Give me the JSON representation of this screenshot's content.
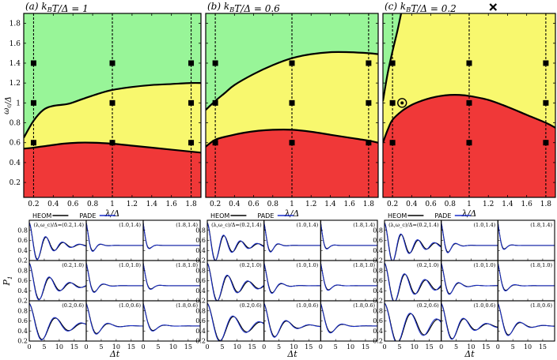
{
  "chart_data": [
    {
      "type": "phase_diagram",
      "panel": "(a)",
      "title": "(a) k_BT/Δ = 1",
      "xlabel": "λ/Δ",
      "ylabel": "ω_c/Δ",
      "xlim": [
        0.1,
        1.9
      ],
      "ylim": [
        0.05,
        1.9
      ],
      "xticks": [
        "0.2",
        "0.4",
        "0.6",
        "0.8",
        "1",
        "1.2",
        "1.4",
        "1.6",
        "1.8"
      ],
      "yticks": [
        "0.2",
        "0.4",
        "0.6",
        "0.8",
        "1",
        "1.2",
        "1.4",
        "1.6",
        "1.8"
      ],
      "region_colors": {
        "top": "#98f598",
        "middle": "#f8f86e",
        "bottom": "#f03838"
      },
      "upper_boundary": {
        "x": [
          0.1,
          0.2,
          0.3,
          0.4,
          0.55,
          0.7,
          0.85,
          1.0,
          1.2,
          1.4,
          1.6,
          1.8,
          1.9
        ],
        "y": [
          0.65,
          0.82,
          0.93,
          0.97,
          0.99,
          1.04,
          1.09,
          1.13,
          1.16,
          1.18,
          1.19,
          1.2,
          1.2
        ]
      },
      "lower_boundary": {
        "x": [
          0.1,
          0.2,
          0.35,
          0.5,
          0.65,
          0.8,
          1.0,
          1.2,
          1.4,
          1.6,
          1.8,
          1.9
        ],
        "y": [
          0.54,
          0.55,
          0.57,
          0.59,
          0.6,
          0.6,
          0.59,
          0.57,
          0.55,
          0.53,
          0.51,
          0.5
        ]
      },
      "top_line": null,
      "dashed_lines_x": [
        0.2,
        1.0,
        1.8
      ],
      "points": {
        "x": [
          0.2,
          1.0,
          1.8
        ],
        "y": [
          0.6,
          1.0,
          1.4
        ]
      },
      "circled_point": null,
      "cross": null
    },
    {
      "type": "phase_diagram",
      "panel": "(b)",
      "title": "(b) k_BT/Δ = 0.6",
      "xlabel": "λ/Δ",
      "ylabel": "",
      "xlim": [
        0.1,
        1.9
      ],
      "ylim": [
        0.05,
        1.9
      ],
      "xticks": [
        "0.2",
        "0.4",
        "0.6",
        "0.8",
        "1",
        "1.2",
        "1.4",
        "1.6",
        "1.8"
      ],
      "yticks": [],
      "region_colors": {
        "top": "#98f598",
        "middle": "#f8f86e",
        "bottom": "#f03838"
      },
      "upper_boundary": {
        "x": [
          0.1,
          0.2,
          0.3,
          0.4,
          0.6,
          0.8,
          1.0,
          1.2,
          1.4,
          1.6,
          1.8,
          1.9
        ],
        "y": [
          0.93,
          1.02,
          1.1,
          1.18,
          1.29,
          1.38,
          1.45,
          1.49,
          1.51,
          1.51,
          1.5,
          1.49
        ]
      },
      "lower_boundary": {
        "x": [
          0.1,
          0.2,
          0.35,
          0.5,
          0.65,
          0.8,
          1.0,
          1.2,
          1.4,
          1.6,
          1.8,
          1.9
        ],
        "y": [
          0.56,
          0.63,
          0.67,
          0.7,
          0.72,
          0.73,
          0.73,
          0.71,
          0.68,
          0.65,
          0.62,
          0.6
        ]
      },
      "top_line": null,
      "dashed_lines_x": [
        0.2,
        1.0,
        1.8
      ],
      "points": {
        "x": [
          0.2,
          1.0,
          1.8
        ],
        "y": [
          0.6,
          1.0,
          1.4
        ]
      },
      "circled_point": null,
      "cross": null
    },
    {
      "type": "phase_diagram",
      "panel": "(c)",
      "title": "(c) k_BT/Δ = 0.2",
      "xlabel": "λ/Δ",
      "ylabel": "",
      "xlim": [
        0.1,
        1.9
      ],
      "ylim": [
        0.05,
        1.9
      ],
      "xticks": [
        "0.2",
        "0.4",
        "0.6",
        "0.8",
        "1",
        "1.2",
        "1.4",
        "1.6",
        "1.8"
      ],
      "yticks": [],
      "region_colors": {
        "top": "#98f598",
        "middle": "#f8f86e",
        "bottom": "#f03838"
      },
      "upper_boundary": {
        "x": [
          0.1,
          0.15,
          0.2,
          0.3,
          0.4,
          0.5,
          0.6,
          0.7,
          0.8,
          0.9,
          1.0,
          1.2,
          1.4,
          1.6,
          1.8,
          1.9
        ],
        "y": [
          0.6,
          0.73,
          0.83,
          0.92,
          0.98,
          1.02,
          1.05,
          1.07,
          1.08,
          1.08,
          1.07,
          1.03,
          0.96,
          0.88,
          0.8,
          0.75
        ]
      },
      "lower_boundary": null,
      "top_line": {
        "x": [
          0.1,
          0.15,
          0.2,
          0.25,
          0.29
        ],
        "y": [
          1.02,
          1.3,
          1.52,
          1.72,
          1.9
        ]
      },
      "dashed_lines_x": [
        0.2,
        1.0,
        1.8
      ],
      "points": {
        "x": [
          0.2,
          1.0,
          1.8
        ],
        "y": [
          0.6,
          1.0,
          1.4
        ]
      },
      "circled_point": {
        "x": 0.3,
        "y": 1.0
      },
      "cross": {
        "x": 1.25,
        "y": 2.05
      }
    }
  ],
  "dynamics": {
    "ylabel": "P_1",
    "xlabel": "Δt",
    "xticks": [
      "0",
      "5",
      "10",
      "15"
    ],
    "yticks": [
      "0.2",
      "0.4",
      "0.6",
      "0.8"
    ],
    "legend": [
      {
        "label": "HEOM",
        "color": "#000000"
      },
      {
        "label": "PADE",
        "color": "#1a2fcc"
      }
    ],
    "first_cell_prefix": "(λ,ω_c)/Δ=",
    "cell_labels": [
      [
        "(0.2,1.4)",
        "(1.0,1.4)",
        "(1.8,1.4)"
      ],
      [
        "(0.2,1.0)",
        "(1.0,1.0)",
        "(1.8,1.0)"
      ],
      [
        "(0.2,0.6)",
        "(1.0,0.6)",
        "(1.8,0.6)"
      ]
    ],
    "t_range": [
      0,
      19
    ],
    "y_range": [
      0.2,
      1.0
    ],
    "series_params": [
      {
        "panel": "(a)",
        "cells": [
          [
            {
              "f": 1.1,
              "g": 0.18
            },
            {
              "f": 1.2,
              "g": 0.6
            },
            {
              "f": 1.2,
              "g": 0.9
            }
          ],
          [
            {
              "f": 0.9,
              "g": 0.15
            },
            {
              "f": 1.0,
              "g": 0.45
            },
            {
              "f": 1.0,
              "g": 0.7
            }
          ],
          [
            {
              "f": 0.7,
              "g": 0.12
            },
            {
              "f": 0.8,
              "g": 0.3
            },
            {
              "f": 0.8,
              "g": 0.45
            }
          ]
        ]
      },
      {
        "panel": "(b)",
        "cells": [
          [
            {
              "f": 1.1,
              "g": 0.15
            },
            {
              "f": 1.2,
              "g": 0.55
            },
            {
              "f": 1.2,
              "g": 0.85
            }
          ],
          [
            {
              "f": 0.9,
              "g": 0.12
            },
            {
              "f": 1.0,
              "g": 0.4
            },
            {
              "f": 1.0,
              "g": 0.6
            }
          ],
          [
            {
              "f": 0.7,
              "g": 0.1
            },
            {
              "f": 0.8,
              "g": 0.2
            },
            {
              "f": 0.8,
              "g": 0.35
            }
          ]
        ]
      },
      {
        "panel": "(c)",
        "cells": [
          [
            {
              "f": 1.1,
              "g": 0.13
            },
            {
              "f": 1.2,
              "g": 0.5
            },
            {
              "f": 1.2,
              "g": 0.8
            }
          ],
          [
            {
              "f": 0.9,
              "g": 0.1
            },
            {
              "f": 1.0,
              "g": 0.35
            },
            {
              "f": 1.0,
              "g": 0.55
            }
          ],
          [
            {
              "f": 0.7,
              "g": 0.07
            },
            {
              "f": 0.8,
              "g": 0.15
            },
            {
              "f": 0.8,
              "g": 0.25
            }
          ]
        ]
      }
    ]
  }
}
